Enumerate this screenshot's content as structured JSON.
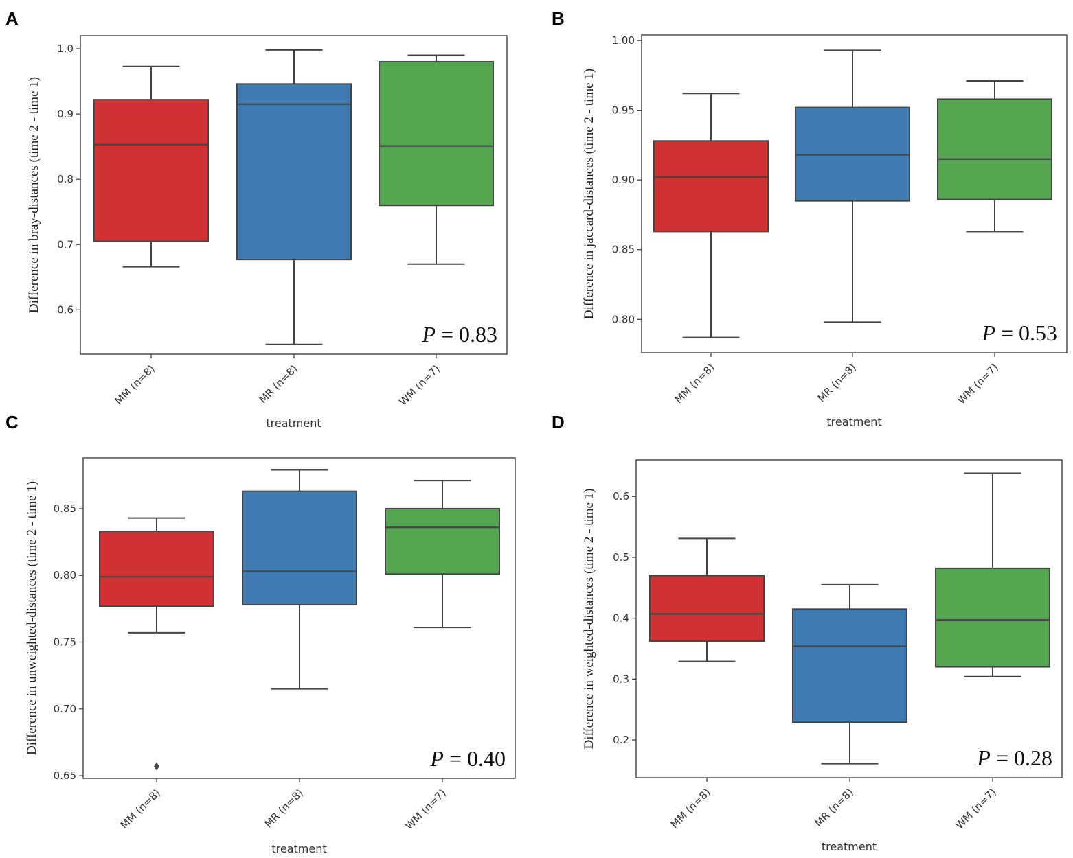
{
  "chart_data": [
    {
      "panel": "A",
      "type": "box",
      "ylabel": "Difference in bray-distances (time 2 - time 1)",
      "xlabel": "treatment",
      "yticks": [
        "0.6",
        "0.7",
        "0.8",
        "0.9",
        "1.0"
      ],
      "ylim": [
        0.532,
        1.02
      ],
      "categories": [
        "MM (n=8)",
        "MR (n=8)",
        "WM (n=7)"
      ],
      "series": [
        {
          "name": "MM (n=8)",
          "whisker_low": 0.666,
          "q1": 0.705,
          "median": 0.853,
          "q3": 0.922,
          "whisker_high": 0.973,
          "outliers": []
        },
        {
          "name": "MR (n=8)",
          "whisker_low": 0.547,
          "q1": 0.677,
          "median": 0.915,
          "q3": 0.946,
          "whisker_high": 0.998,
          "outliers": []
        },
        {
          "name": "WM (n=7)",
          "whisker_low": 0.67,
          "q1": 0.76,
          "median": 0.851,
          "q3": 0.98,
          "whisker_high": 0.99,
          "outliers": []
        }
      ],
      "p_label": "P",
      "p_value": "= 0.83"
    },
    {
      "panel": "B",
      "type": "box",
      "ylabel": "Difference in jaccard-distances (time 2 - time 1)",
      "xlabel": "treatment",
      "yticks": [
        "0.80",
        "0.85",
        "0.90",
        "0.95",
        "1.00"
      ],
      "ylim": [
        0.776,
        1.004
      ],
      "categories": [
        "MM (n=8)",
        "MR (n=8)",
        "WM (n=7)"
      ],
      "series": [
        {
          "name": "MM (n=8)",
          "whisker_low": 0.787,
          "q1": 0.863,
          "median": 0.902,
          "q3": 0.928,
          "whisker_high": 0.962,
          "outliers": []
        },
        {
          "name": "MR (n=8)",
          "whisker_low": 0.798,
          "q1": 0.885,
          "median": 0.918,
          "q3": 0.952,
          "whisker_high": 0.993,
          "outliers": []
        },
        {
          "name": "WM (n=7)",
          "whisker_low": 0.863,
          "q1": 0.886,
          "median": 0.915,
          "q3": 0.958,
          "whisker_high": 0.971,
          "outliers": []
        }
      ],
      "p_label": "P",
      "p_value": "= 0.53"
    },
    {
      "panel": "C",
      "type": "box",
      "ylabel": "Difference in unweighted-distances (time 2 - time 1)",
      "xlabel": "treatment",
      "yticks": [
        "0.65",
        "0.70",
        "0.75",
        "0.80",
        "0.85"
      ],
      "ylim": [
        0.648,
        0.888
      ],
      "categories": [
        "MM (n=8)",
        "MR (n=8)",
        "WM (n=7)"
      ],
      "series": [
        {
          "name": "MM (n=8)",
          "whisker_low": 0.757,
          "q1": 0.777,
          "median": 0.799,
          "q3": 0.833,
          "whisker_high": 0.843,
          "outliers": [
            0.657
          ]
        },
        {
          "name": "MR (n=8)",
          "whisker_low": 0.715,
          "q1": 0.778,
          "median": 0.803,
          "q3": 0.863,
          "whisker_high": 0.879,
          "outliers": []
        },
        {
          "name": "WM (n=7)",
          "whisker_low": 0.761,
          "q1": 0.801,
          "median": 0.836,
          "q3": 0.85,
          "whisker_high": 0.871,
          "outliers": []
        }
      ],
      "p_label": "P",
      "p_value": "= 0.40"
    },
    {
      "panel": "D",
      "type": "box",
      "ylabel": "Difference in weighted-distances (time 2 - time 1)",
      "xlabel": "treatment",
      "yticks": [
        "0.2",
        "0.3",
        "0.4",
        "0.5",
        "0.6"
      ],
      "ylim": [
        0.138,
        0.66
      ],
      "categories": [
        "MM (n=8)",
        "MR (n=8)",
        "WM (n=7)"
      ],
      "series": [
        {
          "name": "MM (n=8)",
          "whisker_low": 0.329,
          "q1": 0.362,
          "median": 0.407,
          "q3": 0.47,
          "whisker_high": 0.531,
          "outliers": []
        },
        {
          "name": "MR (n=8)",
          "whisker_low": 0.161,
          "q1": 0.229,
          "median": 0.354,
          "q3": 0.415,
          "whisker_high": 0.455,
          "outliers": []
        },
        {
          "name": "WM (n=7)",
          "whisker_low": 0.304,
          "q1": 0.32,
          "median": 0.397,
          "q3": 0.482,
          "whisker_high": 0.638,
          "outliers": []
        }
      ],
      "p_label": "P",
      "p_value": "= 0.28"
    }
  ],
  "colors": {
    "MM": "#d03233",
    "MR": "#3f7cb3",
    "WM": "#53a550"
  }
}
